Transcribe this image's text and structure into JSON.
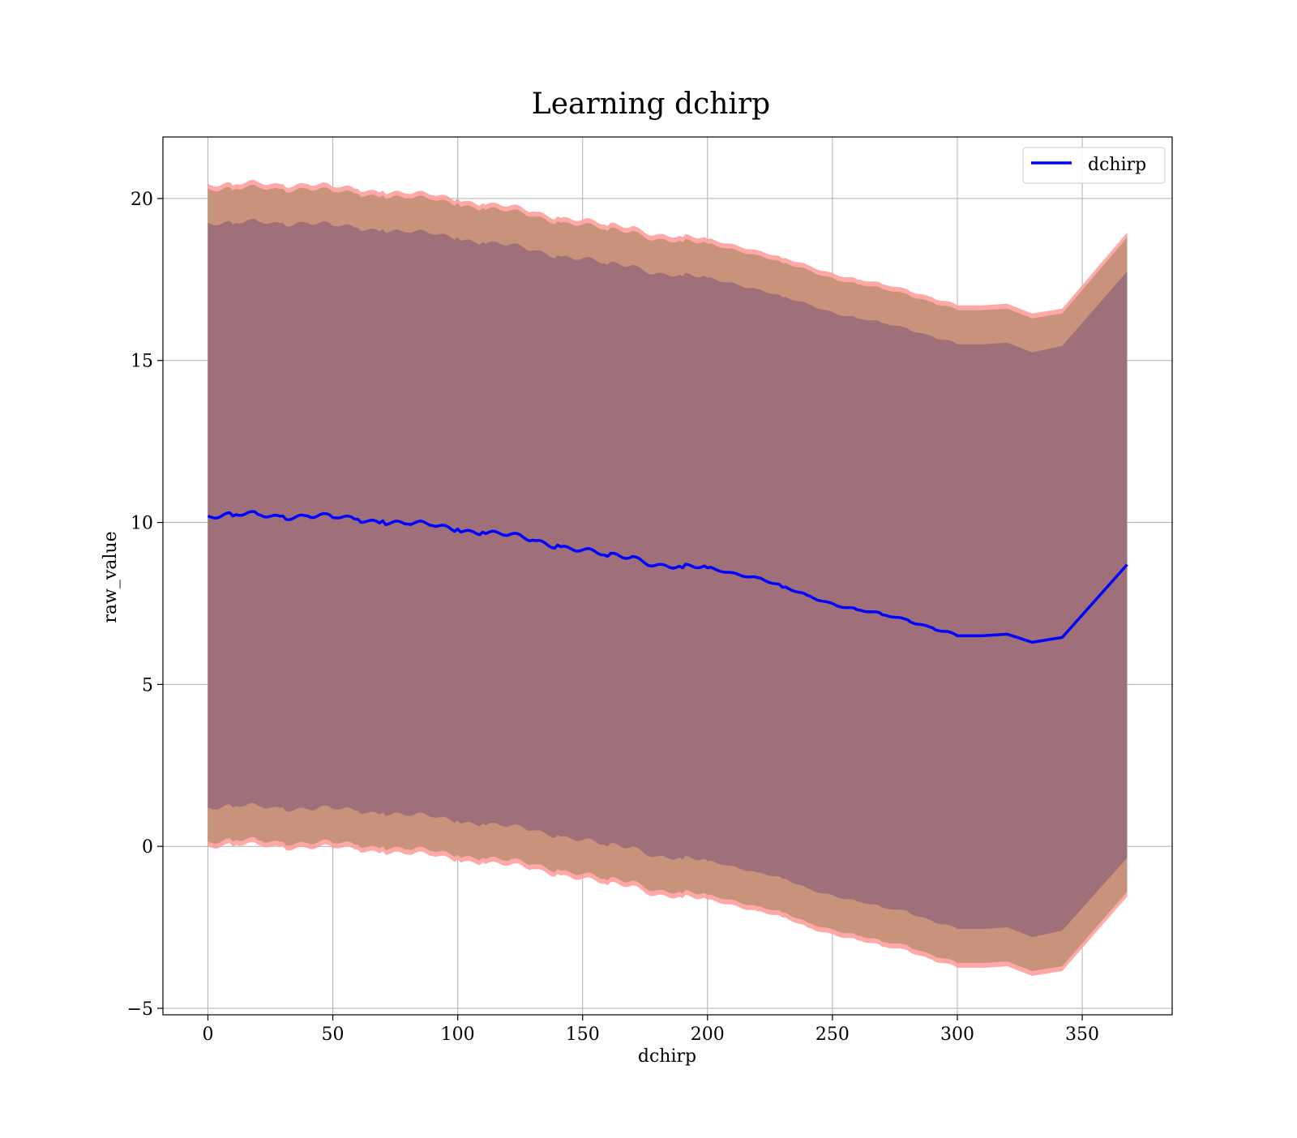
{
  "chart_data": {
    "type": "line",
    "title": "Learning dchirp",
    "xlabel": "dchirp",
    "ylabel": "raw_value",
    "xlim": [
      -18,
      386
    ],
    "ylim": [
      -5.2,
      21.9
    ],
    "xticks": [
      0,
      50,
      100,
      150,
      200,
      250,
      300,
      350
    ],
    "yticks": [
      -5,
      0,
      5,
      10,
      15,
      20
    ],
    "ytick_labels": [
      "−5",
      "0",
      "5",
      "10",
      "15",
      "20"
    ],
    "grid": true,
    "legend": {
      "position": "top-right",
      "entries": [
        "dchirp"
      ]
    },
    "colors": {
      "mean_line": "#0000ff",
      "band_outer": "#ff9999",
      "band_mid": "#c8937a",
      "band_inner": "#a0707a"
    },
    "series": [
      {
        "name": "dchirp",
        "role": "mean",
        "x": [
          0,
          10,
          20,
          30,
          40,
          50,
          60,
          70,
          80,
          90,
          100,
          110,
          120,
          130,
          140,
          150,
          160,
          170,
          180,
          190,
          200,
          210,
          220,
          230,
          240,
          250,
          260,
          270,
          280,
          290,
          300,
          310,
          320,
          330,
          342,
          368
        ],
        "y": [
          10.2,
          10.2,
          10.25,
          10.2,
          10.2,
          10.15,
          10.1,
          10.05,
          9.95,
          9.9,
          9.8,
          9.7,
          9.6,
          9.45,
          9.3,
          9.15,
          8.95,
          8.95,
          8.7,
          8.6,
          8.6,
          8.45,
          8.3,
          8.0,
          7.75,
          7.5,
          7.3,
          7.15,
          7.0,
          6.75,
          6.5,
          6.5,
          6.55,
          6.3,
          6.45,
          8.7
        ]
      }
    ],
    "bands": [
      {
        "role": "outer",
        "x": [
          0,
          10,
          20,
          30,
          40,
          50,
          60,
          70,
          80,
          90,
          100,
          110,
          120,
          130,
          140,
          150,
          160,
          170,
          180,
          190,
          200,
          210,
          220,
          230,
          240,
          250,
          260,
          270,
          280,
          290,
          300,
          310,
          320,
          330,
          342,
          368
        ],
        "upper": [
          20.45,
          20.4,
          20.5,
          20.45,
          20.45,
          20.35,
          20.3,
          20.25,
          20.15,
          20.1,
          20.0,
          19.85,
          19.75,
          19.6,
          19.45,
          19.35,
          19.15,
          19.15,
          18.9,
          18.8,
          18.75,
          18.6,
          18.4,
          18.15,
          17.95,
          17.7,
          17.5,
          17.35,
          17.2,
          16.95,
          16.7,
          16.7,
          16.75,
          16.45,
          16.6,
          18.95
        ],
        "lower": [
          0.0,
          0.0,
          0.05,
          0.0,
          -0.05,
          -0.05,
          -0.1,
          -0.15,
          -0.25,
          -0.3,
          -0.4,
          -0.5,
          -0.6,
          -0.7,
          -0.85,
          -1.0,
          -1.2,
          -1.2,
          -1.5,
          -1.6,
          -1.65,
          -1.8,
          -2.0,
          -2.2,
          -2.5,
          -2.7,
          -2.9,
          -3.1,
          -3.2,
          -3.5,
          -3.75,
          -3.75,
          -3.7,
          -4.0,
          -3.85,
          -1.55
        ]
      },
      {
        "role": "mid",
        "x": [
          0,
          10,
          20,
          30,
          40,
          50,
          60,
          70,
          80,
          90,
          100,
          110,
          120,
          130,
          140,
          150,
          160,
          170,
          180,
          190,
          200,
          210,
          220,
          230,
          240,
          250,
          260,
          270,
          280,
          290,
          300,
          310,
          320,
          330,
          342,
          368
        ],
        "upper": [
          20.3,
          20.25,
          20.35,
          20.3,
          20.3,
          20.2,
          20.15,
          20.1,
          20.0,
          19.95,
          19.85,
          19.7,
          19.6,
          19.45,
          19.3,
          19.2,
          19.0,
          19.0,
          18.75,
          18.65,
          18.6,
          18.45,
          18.25,
          18.0,
          17.8,
          17.55,
          17.35,
          17.2,
          17.05,
          16.8,
          16.55,
          16.55,
          16.6,
          16.3,
          16.45,
          18.8
        ],
        "lower": [
          0.15,
          0.15,
          0.2,
          0.15,
          0.1,
          0.1,
          0.05,
          0.0,
          -0.1,
          -0.15,
          -0.25,
          -0.35,
          -0.45,
          -0.55,
          -0.7,
          -0.85,
          -1.05,
          -1.05,
          -1.35,
          -1.45,
          -1.5,
          -1.65,
          -1.85,
          -2.05,
          -2.35,
          -2.55,
          -2.75,
          -2.95,
          -3.05,
          -3.35,
          -3.6,
          -3.6,
          -3.55,
          -3.85,
          -3.7,
          -1.4
        ]
      },
      {
        "role": "inner",
        "x": [
          0,
          10,
          20,
          30,
          40,
          50,
          60,
          70,
          80,
          90,
          100,
          110,
          120,
          130,
          140,
          150,
          160,
          170,
          180,
          190,
          200,
          210,
          220,
          230,
          240,
          250,
          260,
          270,
          280,
          290,
          300,
          310,
          320,
          330,
          342,
          368
        ],
        "upper": [
          19.25,
          19.2,
          19.3,
          19.25,
          19.25,
          19.15,
          19.1,
          19.05,
          18.95,
          18.9,
          18.8,
          18.65,
          18.55,
          18.4,
          18.25,
          18.15,
          17.95,
          17.95,
          17.7,
          17.6,
          17.55,
          17.4,
          17.2,
          16.95,
          16.75,
          16.5,
          16.3,
          16.15,
          16.0,
          15.75,
          15.5,
          15.5,
          15.55,
          15.25,
          15.45,
          17.75
        ],
        "lower": [
          1.2,
          1.2,
          1.25,
          1.2,
          1.15,
          1.15,
          1.1,
          1.05,
          0.95,
          0.9,
          0.8,
          0.7,
          0.6,
          0.5,
          0.35,
          0.2,
          0.0,
          0.0,
          -0.3,
          -0.4,
          -0.45,
          -0.6,
          -0.8,
          -1.0,
          -1.3,
          -1.5,
          -1.7,
          -1.9,
          -2.0,
          -2.3,
          -2.55,
          -2.55,
          -2.5,
          -2.8,
          -2.6,
          -0.35
        ]
      }
    ]
  }
}
